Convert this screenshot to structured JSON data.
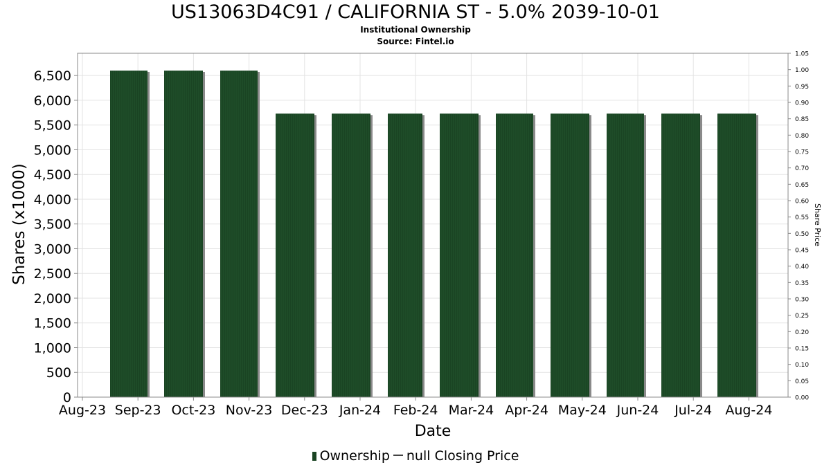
{
  "chart_data": {
    "type": "bar",
    "title": "US13063D4C91 / CALIFORNIA ST - 5.0% 2039-10-01",
    "subtitle": "Institutional Ownership",
    "source": "Source: Fintel.io",
    "xlabel": "Date",
    "ylabel": "Shares (x1000)",
    "y2label": "Share Price",
    "x_tick_labels": [
      "Aug-23",
      "Sep-23",
      "Oct-23",
      "Nov-23",
      "Dec-23",
      "Jan-24",
      "Feb-24",
      "Mar-24",
      "Apr-24",
      "May-24",
      "Jun-24",
      "Jul-24",
      "Aug-24"
    ],
    "categories": [
      "Sep-23",
      "Oct-23",
      "Nov-23",
      "Dec-23",
      "Jan-24",
      "Feb-24",
      "Mar-24",
      "Apr-24",
      "May-24",
      "Jun-24",
      "Jul-24",
      "Aug-24"
    ],
    "series": [
      {
        "name": "Ownership",
        "values": [
          6600,
          6600,
          6600,
          5730,
          5730,
          5730,
          5730,
          5730,
          5730,
          5730,
          5730,
          5730
        ]
      }
    ],
    "y_ticks": [
      "0",
      "500",
      "1,000",
      "1,500",
      "2,000",
      "2,500",
      "3,000",
      "3,500",
      "4,000",
      "4,500",
      "5,000",
      "5,500",
      "6,000",
      "6,500"
    ],
    "ylim": [
      0,
      6950
    ],
    "y2_ticks": [
      "0.00",
      "0.05",
      "0.10",
      "0.15",
      "0.20",
      "0.25",
      "0.30",
      "0.35",
      "0.40",
      "0.45",
      "0.50",
      "0.55",
      "0.60",
      "0.65",
      "0.70",
      "0.75",
      "0.80",
      "0.85",
      "0.90",
      "0.95",
      "1.00",
      "1.05"
    ],
    "y2lim": [
      0,
      1.05
    ],
    "grid": true,
    "legend_position": "bottom",
    "legend": {
      "ownership": "Ownership",
      "price": "null Closing Price"
    },
    "colors": {
      "bar": "#1a4423",
      "bar_shadow": "#8a8a8a",
      "grid": "#e3e3e3",
      "border": "#888888"
    }
  }
}
